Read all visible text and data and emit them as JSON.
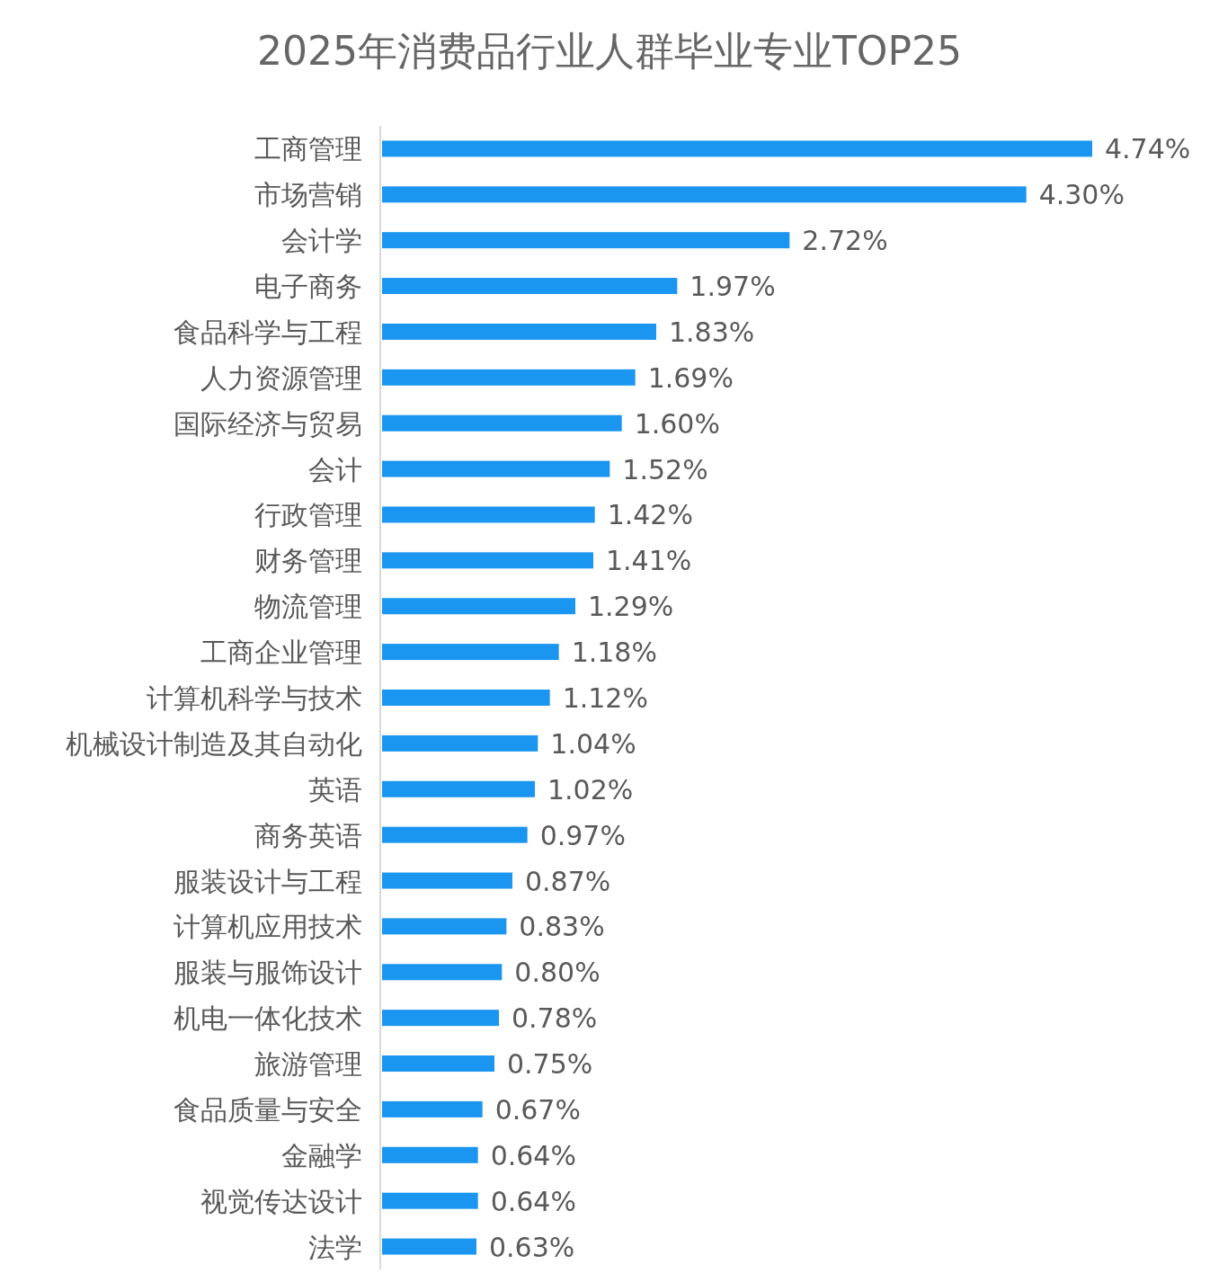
{
  "chart_data": {
    "type": "bar",
    "orientation": "horizontal",
    "title": "2025年消费品行业人群毕业专业TOP25",
    "categories": [
      "工商管理",
      "市场营销",
      "会计学",
      "电子商务",
      "食品科学与工程",
      "人力资源管理",
      "国际经济与贸易",
      "会计",
      "行政管理",
      "财务管理",
      "物流管理",
      "工商企业管理",
      "计算机科学与技术",
      "机械设计制造及其自动化",
      "英语",
      "商务英语",
      "服装设计与工程",
      "计算机应用技术",
      "服装与服饰设计",
      "机电一体化技术",
      "旅游管理",
      "食品质量与安全",
      "金融学",
      "视觉传达设计",
      "法学"
    ],
    "values": [
      4.74,
      4.3,
      2.72,
      1.97,
      1.83,
      1.69,
      1.6,
      1.52,
      1.42,
      1.41,
      1.29,
      1.18,
      1.12,
      1.04,
      1.02,
      0.97,
      0.87,
      0.83,
      0.8,
      0.78,
      0.75,
      0.67,
      0.64,
      0.64,
      0.63
    ],
    "value_labels": [
      "4.74%",
      "4.30%",
      "2.72%",
      "1.97%",
      "1.83%",
      "1.69%",
      "1.60%",
      "1.52%",
      "1.42%",
      "1.41%",
      "1.29%",
      "1.18%",
      "1.12%",
      "1.04%",
      "1.02%",
      "0.97%",
      "0.87%",
      "0.83%",
      "0.80%",
      "0.78%",
      "0.75%",
      "0.67%",
      "0.64%",
      "0.64%",
      "0.63%"
    ],
    "color": "#1a96f0"
  }
}
